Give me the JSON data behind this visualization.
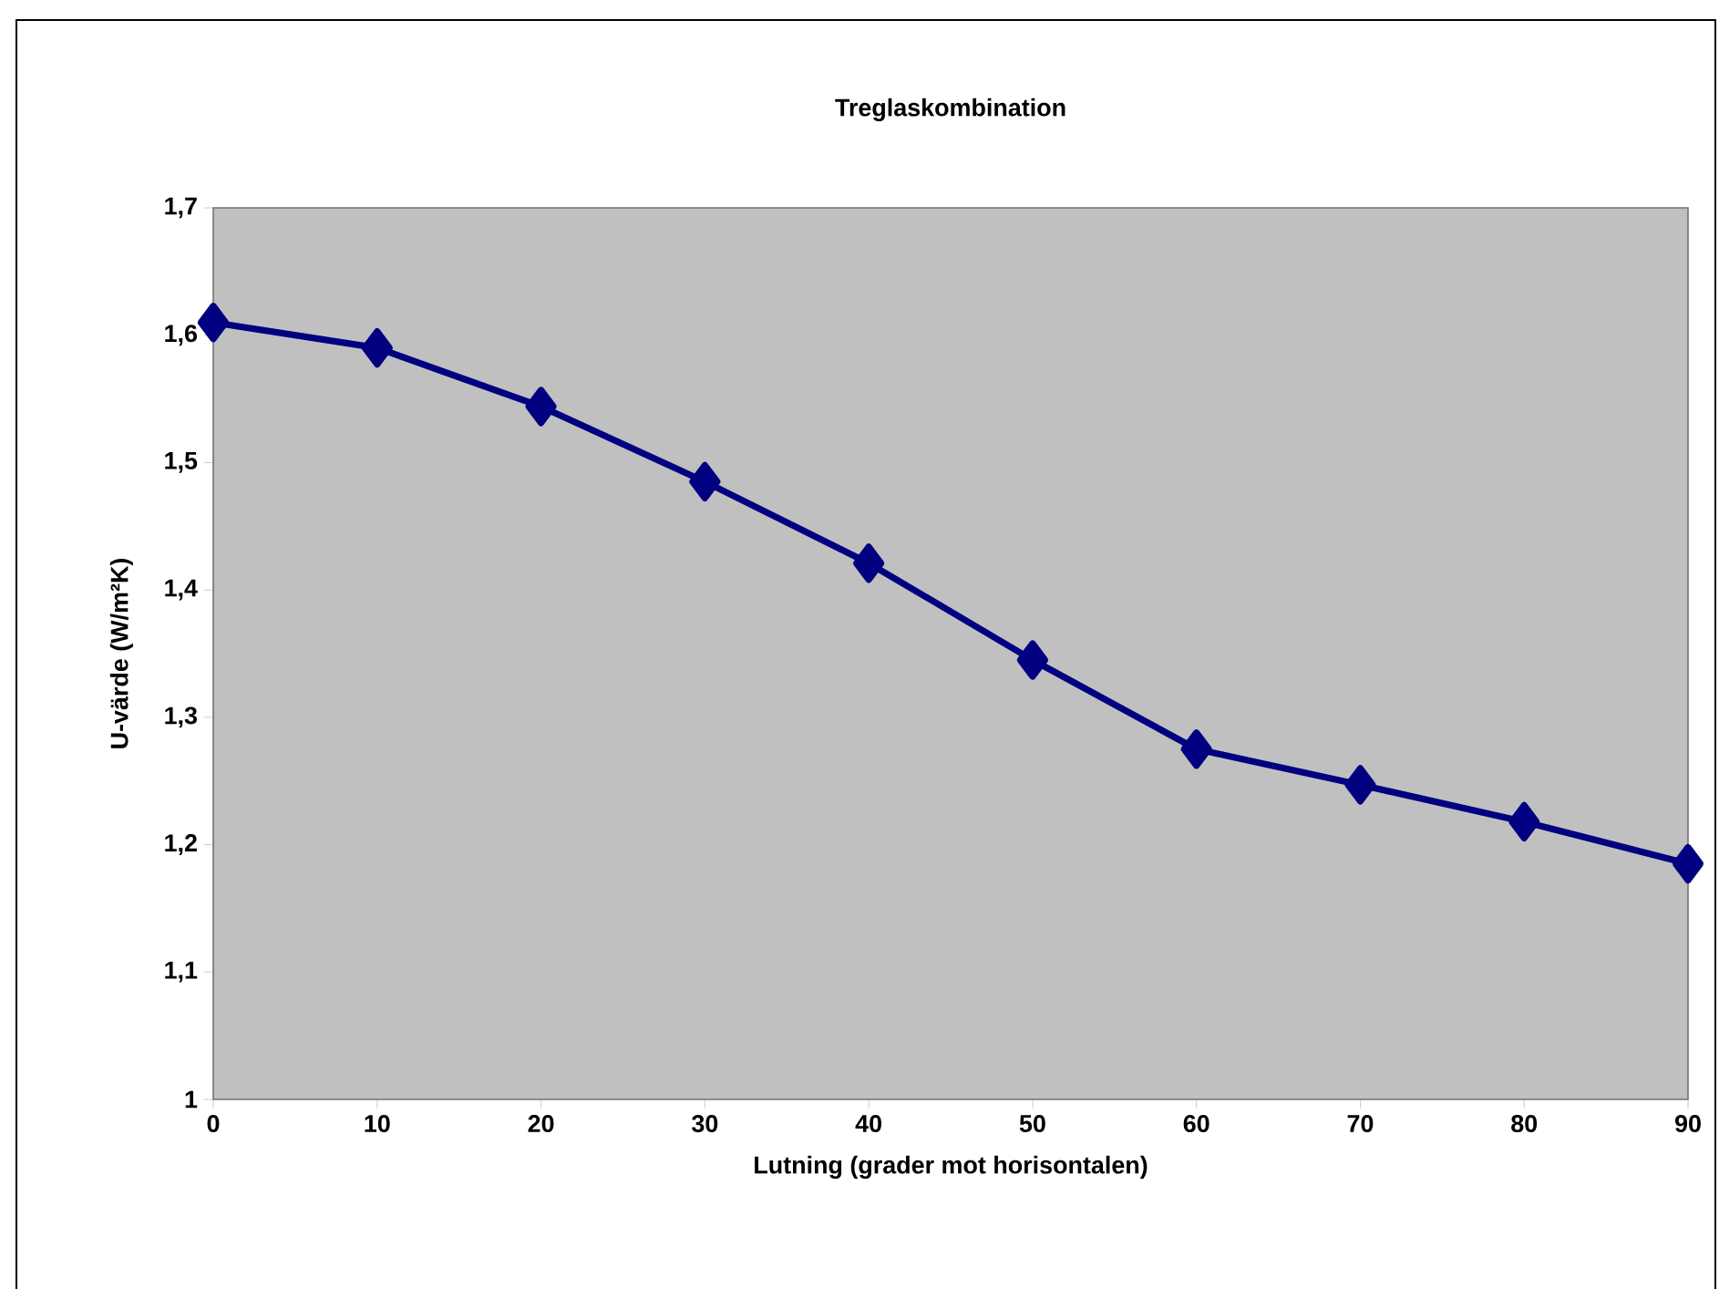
{
  "chart_data": {
    "type": "line",
    "title": "Treglaskombination",
    "xlabel": "Lutning (grader mot horisontalen)",
    "ylabel": "U-värde (W/m²K)",
    "x": [
      0,
      10,
      20,
      30,
      40,
      50,
      60,
      70,
      80,
      90
    ],
    "series": [
      {
        "color": "#000080",
        "values": [
          1.61,
          1.59,
          1.544,
          1.485,
          1.421,
          1.345,
          1.275,
          1.247,
          1.218,
          1.185
        ]
      }
    ],
    "xlim": [
      0,
      90
    ],
    "xticks": [
      0,
      10,
      20,
      30,
      40,
      50,
      60,
      70,
      80,
      90
    ],
    "ylim": [
      1,
      1.7
    ],
    "yticks": [
      1,
      {
        "value": 1.1,
        "label": "1,1"
      },
      {
        "value": 1.2,
        "label": "1,2"
      },
      {
        "value": 1.3,
        "label": "1,3"
      },
      {
        "value": 1.4,
        "label": "1,4"
      },
      {
        "value": 1.5,
        "label": "1,5"
      },
      {
        "value": 1.6,
        "label": "1,6"
      },
      {
        "value": 1.7,
        "label": "1,7"
      }
    ],
    "grid": false,
    "marker": "diamond",
    "line_style": "solid"
  }
}
